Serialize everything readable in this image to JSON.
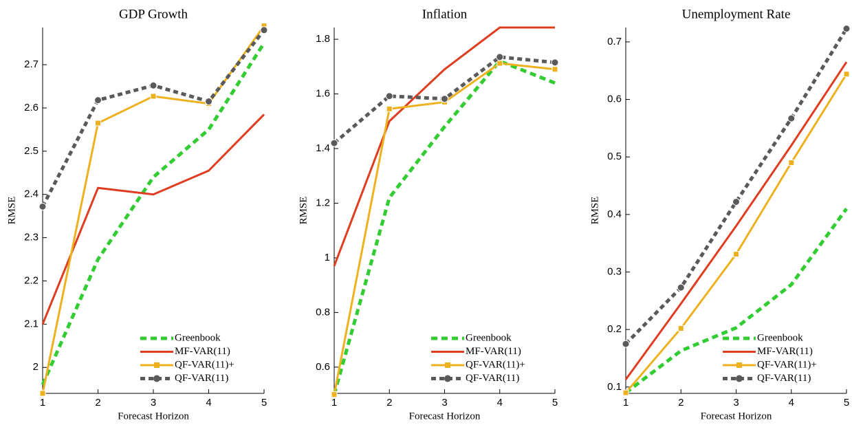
{
  "chart_data": [
    {
      "type": "line",
      "title": "GDP Growth",
      "x_label": "Forecast Horizon",
      "y_label": "RMSE",
      "x": [
        1,
        2,
        3,
        4,
        5
      ],
      "xlim": [
        1,
        5
      ],
      "xticks": [
        1,
        2,
        3,
        4,
        5
      ],
      "ylim": [
        1.94,
        2.786
      ],
      "yticks": [
        2,
        2.1,
        2.2,
        2.3,
        2.4,
        2.5,
        2.6,
        2.7
      ],
      "legend": "lower right",
      "series": [
        {
          "name": "Greenbook",
          "color": "#33cc33",
          "style": "dashed",
          "values": [
            1.96,
            2.25,
            2.44,
            2.55,
            2.75
          ]
        },
        {
          "name": "MF-VAR(11)",
          "color": "#e03c1f",
          "style": "solid",
          "values": [
            2.1,
            2.415,
            2.4,
            2.455,
            2.585
          ]
        },
        {
          "name": "QF-VAR(11)+",
          "color": "#edb120",
          "style": "solid",
          "marker": "square",
          "values": [
            1.94,
            2.565,
            2.627,
            2.61,
            2.79
          ]
        },
        {
          "name": "QF-VAR(11)",
          "color": "#5a5a5a",
          "style": "dotted",
          "marker": "circle",
          "values": [
            2.372,
            2.618,
            2.652,
            2.615,
            2.78
          ]
        }
      ]
    },
    {
      "type": "line",
      "title": "Inflation",
      "x_label": "Forecast Horizon",
      "y_label": "RMSE",
      "x": [
        1,
        2,
        3,
        4,
        5
      ],
      "xlim": [
        1,
        5
      ],
      "xticks": [
        1,
        2,
        3,
        4,
        5
      ],
      "ylim": [
        0.504,
        1.843
      ],
      "yticks": [
        0.6,
        0.8,
        1,
        1.2,
        1.4,
        1.6,
        1.8
      ],
      "legend": "lower right",
      "series": [
        {
          "name": "Greenbook",
          "color": "#33cc33",
          "style": "dashed",
          "values": [
            0.5,
            1.22,
            1.48,
            1.72,
            1.64
          ]
        },
        {
          "name": "MF-VAR(11)",
          "color": "#e03c1f",
          "style": "solid",
          "values": [
            0.97,
            1.5,
            1.69,
            1.843,
            1.843
          ]
        },
        {
          "name": "QF-VAR(11)+",
          "color": "#edb120",
          "style": "solid",
          "marker": "square",
          "values": [
            0.5,
            1.545,
            1.57,
            1.712,
            1.69
          ]
        },
        {
          "name": "QF-VAR(11)",
          "color": "#5a5a5a",
          "style": "dotted",
          "marker": "circle",
          "values": [
            1.42,
            1.592,
            1.582,
            1.735,
            1.715
          ]
        }
      ]
    },
    {
      "type": "line",
      "title": "Unemployment Rate",
      "x_label": "Forecast Horizon",
      "y_label": "RMSE",
      "x": [
        1,
        2,
        3,
        4,
        5
      ],
      "xlim": [
        1,
        5
      ],
      "xticks": [
        1,
        2,
        3,
        4,
        5
      ],
      "ylim": [
        0.089,
        0.725
      ],
      "yticks": [
        0.1,
        0.2,
        0.3,
        0.4,
        0.5,
        0.6,
        0.7
      ],
      "legend": "lower right",
      "series": [
        {
          "name": "Greenbook",
          "color": "#33cc33",
          "style": "dashed",
          "values": [
            0.09,
            0.163,
            0.203,
            0.278,
            0.41
          ]
        },
        {
          "name": "MF-VAR(11)",
          "color": "#e03c1f",
          "style": "solid",
          "values": [
            0.113,
            0.245,
            0.38,
            0.52,
            0.665
          ]
        },
        {
          "name": "QF-VAR(11)+",
          "color": "#edb120",
          "style": "solid",
          "marker": "square",
          "values": [
            0.09,
            0.202,
            0.331,
            0.49,
            0.644
          ]
        },
        {
          "name": "QF-VAR(11)",
          "color": "#5a5a5a",
          "style": "dotted",
          "marker": "circle",
          "values": [
            0.175,
            0.273,
            0.422,
            0.567,
            0.723
          ]
        }
      ]
    }
  ]
}
